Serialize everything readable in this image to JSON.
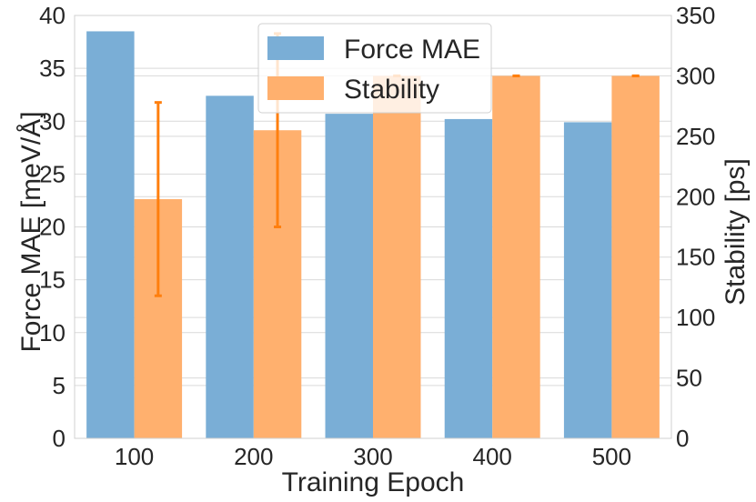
{
  "chart_data": {
    "type": "bar",
    "title": "",
    "xlabel": "Training Epoch",
    "ylabel_left": "Force MAE [meV/Å]",
    "ylabel_right": "Stability [ps]",
    "categories": [
      "100",
      "200",
      "300",
      "400",
      "500"
    ],
    "ylim_left": [
      0,
      40
    ],
    "yticks_left": [
      0,
      5,
      10,
      15,
      20,
      25,
      30,
      35,
      40
    ],
    "ylim_right": [
      0,
      350
    ],
    "yticks_right": [
      0,
      50,
      100,
      150,
      200,
      250,
      300,
      350
    ],
    "grid": true,
    "legend_position": "top-center",
    "series": [
      {
        "name": "Force MAE",
        "axis": "left",
        "color": "#7aaed6",
        "values": [
          38.5,
          32.4,
          30.7,
          30.2,
          29.9
        ]
      },
      {
        "name": "Stability",
        "axis": "right",
        "color": "#ffb06e",
        "error_color": "#ff7f0e",
        "values": [
          198,
          255,
          300,
          300,
          300
        ],
        "error": [
          80,
          80,
          0,
          0,
          0
        ]
      }
    ]
  }
}
